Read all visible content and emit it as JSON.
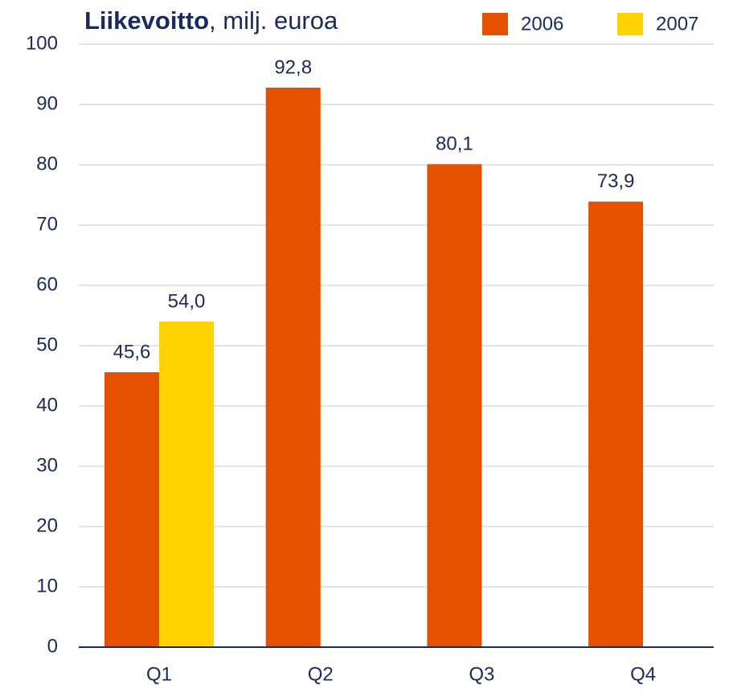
{
  "chart_data": {
    "type": "bar",
    "title": [
      "Liikevoitto",
      ", milj. euroa"
    ],
    "categories": [
      "Q1",
      "Q2",
      "Q3",
      "Q4"
    ],
    "series": [
      {
        "name": "2006",
        "color": "#e65100",
        "values": [
          45.6,
          92.8,
          80.1,
          73.9
        ],
        "value_labels": [
          "45,6",
          "92,8",
          "80,1",
          "73,9"
        ]
      },
      {
        "name": "2007",
        "color": "#ffd200",
        "values": [
          54.0,
          null,
          null,
          null
        ],
        "value_labels": [
          "54,0",
          null,
          null,
          null
        ]
      }
    ],
    "ylim": [
      0,
      100
    ],
    "yticks": [
      0,
      10,
      20,
      30,
      40,
      50,
      60,
      70,
      80,
      90,
      100
    ],
    "grid": true
  }
}
